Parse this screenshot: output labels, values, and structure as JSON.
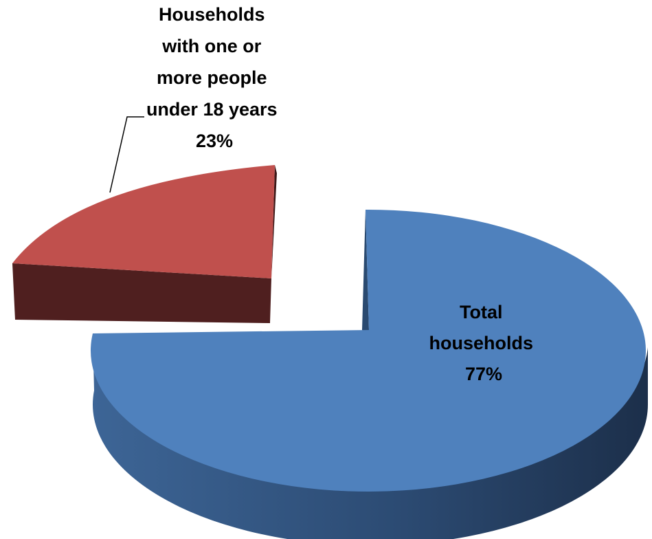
{
  "chart_data": {
    "type": "pie",
    "title": "",
    "slices": [
      {
        "label_lines": [
          "Total",
          "households"
        ],
        "value": 77,
        "value_text": "77%",
        "color": "#4f81bd",
        "side_color": "#2a4a70"
      },
      {
        "label_lines": [
          "Households",
          "with one or",
          "more people",
          "under 18 years"
        ],
        "value": 23,
        "value_text": "23%",
        "color": "#c0504d",
        "side_color": "#4f1f1f"
      }
    ]
  }
}
